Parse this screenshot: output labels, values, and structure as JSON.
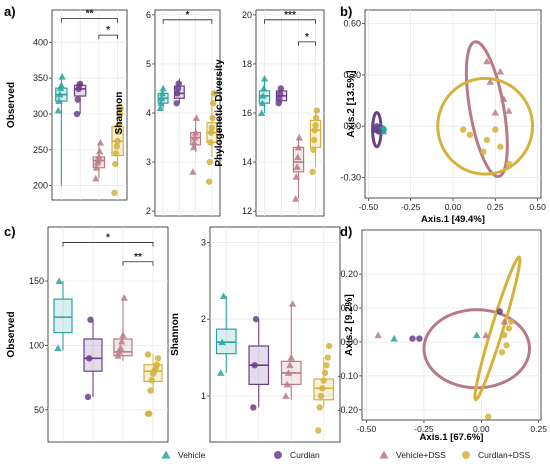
{
  "colors": {
    "vehicle": "#2aa39e",
    "curdlan": "#6b3f8a",
    "vehicle_dss": "#b87a86",
    "curdlan_dss": "#d4b23c",
    "grid": "#e6e6e6"
  },
  "group_order": [
    "Vehicle",
    "Curdlan",
    "Vehicle+DSS",
    "Curdlan+DSS"
  ],
  "legend": {
    "items": [
      {
        "label": "Vehicle",
        "marker": "triangle",
        "color_key": "vehicle"
      },
      {
        "label": "Curdlan",
        "marker": "circle",
        "color_key": "curdlan"
      },
      {
        "label": "Vehicle+DSS",
        "marker": "triangle",
        "color_key": "vehicle_dss"
      },
      {
        "label": "Curdlan+DSS",
        "marker": "circle",
        "color_key": "curdlan_dss"
      }
    ]
  },
  "chart_data": [
    {
      "panel": "a)",
      "type": "box",
      "ylabel": "Observed",
      "ylim": [
        180,
        445
      ],
      "yticks": [
        200,
        250,
        300,
        350,
        400
      ],
      "groups": [
        {
          "group": "Vehicle",
          "box": [
            200,
            318,
            327,
            336,
            352
          ],
          "points": [
            305,
            318,
            327,
            336,
            340,
            352
          ]
        },
        {
          "group": "Curdlan",
          "box": [
            300,
            325,
            335,
            340,
            342
          ],
          "points": [
            300,
            320,
            335,
            340,
            342
          ]
        },
        {
          "group": "Vehicle+DSS",
          "box": [
            210,
            225,
            235,
            240,
            260
          ],
          "points": [
            210,
            225,
            232,
            235,
            240,
            248,
            260
          ]
        },
        {
          "group": "Curdlan+DSS",
          "box": [
            230,
            242,
            262,
            282,
            308
          ],
          "points": [
            190,
            230,
            245,
            255,
            262,
            275,
            285,
            300,
            308
          ]
        }
      ],
      "brackets": [
        {
          "from": 1,
          "to": 4,
          "label": "**",
          "y": 433
        },
        {
          "from": 3,
          "to": 4,
          "label": "*",
          "y": 410
        }
      ]
    },
    {
      "panel": "",
      "type": "box",
      "ylabel": "Shannon",
      "ylim": [
        1.9,
        6.1
      ],
      "yticks": [
        2,
        3,
        4,
        5,
        6
      ],
      "groups": [
        {
          "group": "Vehicle",
          "box": [
            4.1,
            4.2,
            4.3,
            4.4,
            4.5
          ],
          "points": [
            4.1,
            4.2,
            4.3,
            4.4,
            4.5
          ]
        },
        {
          "group": "Curdlan",
          "box": [
            4.2,
            4.3,
            4.4,
            4.55,
            4.7
          ],
          "points": [
            4.2,
            4.4,
            4.5,
            4.6
          ]
        },
        {
          "group": "Vehicle+DSS",
          "box": [
            3.2,
            3.35,
            3.5,
            3.6,
            3.9
          ],
          "points": [
            2.8,
            3.3,
            3.4,
            3.5,
            3.6,
            3.9
          ]
        },
        {
          "group": "Curdlan+DSS",
          "box": [
            3.1,
            3.4,
            3.6,
            3.8,
            4.4
          ],
          "points": [
            2.6,
            3.0,
            3.4,
            3.6,
            3.7,
            3.9,
            4.2,
            4.4
          ]
        }
      ],
      "brackets": [
        {
          "from": 1,
          "to": 4,
          "label": "*",
          "y": 5.9
        }
      ]
    },
    {
      "panel": "",
      "type": "box",
      "ylabel": "Phylogenetic Diversity",
      "ylim": [
        11.8,
        20.2
      ],
      "yticks": [
        12,
        14,
        16,
        18,
        20
      ],
      "groups": [
        {
          "group": "Vehicle",
          "box": [
            16.0,
            16.4,
            16.7,
            16.9,
            17.4
          ],
          "points": [
            16.0,
            16.4,
            16.7,
            17.0,
            17.4
          ]
        },
        {
          "group": "Curdlan",
          "box": [
            16.4,
            16.5,
            16.7,
            16.9,
            17.0
          ],
          "points": [
            16.4,
            16.6,
            16.8,
            17.0
          ]
        },
        {
          "group": "Vehicle+DSS",
          "box": [
            12.5,
            13.6,
            14.0,
            14.6,
            15.0
          ],
          "points": [
            12.5,
            13.4,
            13.8,
            14.2,
            14.6,
            15.0
          ]
        },
        {
          "group": "Curdlan+DSS",
          "box": [
            13.8,
            14.6,
            15.3,
            15.7,
            16.1
          ],
          "points": [
            13.6,
            14.5,
            14.9,
            15.3,
            15.5,
            15.8,
            16.1
          ]
        }
      ],
      "brackets": [
        {
          "from": 1,
          "to": 4,
          "label": "***",
          "y": 19.8
        },
        {
          "from": 3,
          "to": 4,
          "label": "*",
          "y": 18.9
        }
      ]
    },
    {
      "panel": "b)",
      "type": "scatter",
      "xlabel": "Axis.1   [49.4%]",
      "ylabel": "Axis.2 [13.5%]",
      "xlim": [
        -0.52,
        0.52
      ],
      "ylim": [
        -0.42,
        0.68
      ],
      "xticks": [
        -0.5,
        -0.25,
        0.0,
        0.25,
        0.5
      ],
      "yticks": [
        -0.3,
        0.0,
        0.3,
        0.6
      ],
      "points": [
        {
          "group": "Vehicle",
          "x": -0.45,
          "y": -0.01
        },
        {
          "group": "Vehicle",
          "x": -0.43,
          "y": -0.02
        },
        {
          "group": "Vehicle",
          "x": -0.42,
          "y": -0.02
        },
        {
          "group": "Vehicle",
          "x": -0.41,
          "y": -0.03
        },
        {
          "group": "Curdlan",
          "x": -0.46,
          "y": -0.02
        },
        {
          "group": "Curdlan",
          "x": -0.44,
          "y": -0.03
        },
        {
          "group": "Curdlan",
          "x": -0.45,
          "y": 0.0
        },
        {
          "group": "Vehicle+DSS",
          "x": 0.2,
          "y": 0.38
        },
        {
          "group": "Vehicle+DSS",
          "x": 0.28,
          "y": 0.32
        },
        {
          "group": "Vehicle+DSS",
          "x": 0.22,
          "y": 0.26
        },
        {
          "group": "Vehicle+DSS",
          "x": 0.25,
          "y": 0.08
        },
        {
          "group": "Vehicle+DSS",
          "x": 0.3,
          "y": 0.16
        },
        {
          "group": "Vehicle+DSS",
          "x": 0.33,
          "y": 0.09
        },
        {
          "group": "Curdlan+DSS",
          "x": 0.06,
          "y": -0.02
        },
        {
          "group": "Curdlan+DSS",
          "x": 0.1,
          "y": -0.05
        },
        {
          "group": "Curdlan+DSS",
          "x": 0.2,
          "y": -0.08
        },
        {
          "group": "Curdlan+DSS",
          "x": 0.25,
          "y": -0.02
        },
        {
          "group": "Curdlan+DSS",
          "x": 0.28,
          "y": -0.12
        },
        {
          "group": "Curdlan+DSS",
          "x": 0.33,
          "y": -0.22
        },
        {
          "group": "Curdlan+DSS",
          "x": 0.18,
          "y": -0.15
        }
      ],
      "ellipses": [
        {
          "group": "Vehicle",
          "cx": -0.43,
          "cy": -0.02,
          "rx": 0.03,
          "ry": 0.02,
          "angle": 0
        },
        {
          "group": "Curdlan",
          "cx": -0.45,
          "cy": -0.02,
          "rx": 0.025,
          "ry": 0.1,
          "angle": 0
        },
        {
          "group": "Vehicle+DSS",
          "cx": 0.2,
          "cy": 0.1,
          "rx": 0.1,
          "ry": 0.4,
          "angle": -10
        },
        {
          "group": "Curdlan+DSS",
          "cx": 0.19,
          "cy": 0.0,
          "rx": 0.28,
          "ry": 0.28,
          "angle": 0
        }
      ]
    },
    {
      "panel": "c)",
      "type": "box",
      "ylabel": "Observed",
      "ylim": [
        25,
        192
      ],
      "yticks": [
        50,
        100,
        150
      ],
      "groups": [
        {
          "group": "Vehicle",
          "box": [
            96,
            110,
            122,
            136,
            150
          ],
          "points": [
            98,
            150
          ]
        },
        {
          "group": "Curdlan",
          "box": [
            60,
            80,
            90,
            105,
            120
          ],
          "points": [
            60,
            90,
            120
          ]
        },
        {
          "group": "Vehicle+DSS",
          "box": [
            88,
            92,
            95,
            105,
            137
          ],
          "points": [
            92,
            95,
            98,
            103,
            108,
            137
          ]
        },
        {
          "group": "Curdlan+DSS",
          "box": [
            63,
            72,
            80,
            85,
            93
          ],
          "points": [
            47,
            47,
            65,
            73,
            78,
            80,
            82,
            85,
            90,
            93
          ]
        }
      ],
      "brackets": [
        {
          "from": 1,
          "to": 4,
          "label": "*",
          "y": 180
        },
        {
          "from": 3,
          "to": 4,
          "label": "**",
          "y": 165
        }
      ]
    },
    {
      "panel": "",
      "type": "box",
      "ylabel": "Shannon",
      "ylim": [
        0.4,
        3.2
      ],
      "yticks": [
        1,
        2,
        3
      ],
      "groups": [
        {
          "group": "Vehicle",
          "box": [
            1.3,
            1.55,
            1.7,
            1.87,
            2.3
          ],
          "points": [
            1.3,
            1.7,
            2.3
          ]
        },
        {
          "group": "Curdlan",
          "box": [
            0.85,
            1.15,
            1.4,
            1.65,
            2.0
          ],
          "points": [
            0.85,
            1.4,
            2.0
          ]
        },
        {
          "group": "Vehicle+DSS",
          "box": [
            0.95,
            1.15,
            1.3,
            1.45,
            2.2
          ],
          "points": [
            1.0,
            1.15,
            1.3,
            1.4,
            1.5,
            2.2
          ]
        },
        {
          "group": "Curdlan+DSS",
          "box": [
            0.85,
            0.95,
            1.1,
            1.22,
            1.5
          ],
          "points": [
            0.55,
            0.85,
            1.0,
            1.1,
            1.2,
            1.3,
            1.4,
            1.5,
            1.65
          ]
        }
      ],
      "brackets": []
    },
    {
      "panel": "d)",
      "type": "scatter",
      "xlabel": "Axis.1   [67.6%]",
      "ylabel": "Axis.2 [9.2%]",
      "xlim": [
        -0.52,
        0.26
      ],
      "ylim": [
        -0.23,
        0.33
      ],
      "xticks": [
        -0.5,
        -0.25,
        0.0,
        0.25
      ],
      "yticks": [
        -0.2,
        -0.1,
        0.0,
        0.1,
        0.2
      ],
      "points": [
        {
          "group": "Vehicle",
          "x": -0.38,
          "y": 0.01
        },
        {
          "group": "Vehicle",
          "x": -0.02,
          "y": 0.02
        },
        {
          "group": "Curdlan",
          "x": -0.3,
          "y": 0.01
        },
        {
          "group": "Curdlan",
          "x": -0.27,
          "y": 0.01
        },
        {
          "group": "Curdlan",
          "x": 0.08,
          "y": 0.09
        },
        {
          "group": "Vehicle+DSS",
          "x": -0.45,
          "y": 0.02
        },
        {
          "group": "Vehicle+DSS",
          "x": 0.02,
          "y": 0.02
        },
        {
          "group": "Vehicle+DSS",
          "x": 0.1,
          "y": 0.06
        },
        {
          "group": "Curdlan+DSS",
          "x": 0.1,
          "y": 0.02
        },
        {
          "group": "Curdlan+DSS",
          "x": 0.11,
          "y": -0.01
        },
        {
          "group": "Curdlan+DSS",
          "x": 0.12,
          "y": 0.04
        },
        {
          "group": "Curdlan+DSS",
          "x": 0.09,
          "y": -0.03
        },
        {
          "group": "Curdlan+DSS",
          "x": 0.13,
          "y": 0.06
        },
        {
          "group": "Curdlan+DSS",
          "x": 0.03,
          "y": -0.22
        }
      ],
      "ellipses": [
        {
          "group": "Vehicle+DSS",
          "cx": -0.02,
          "cy": -0.02,
          "rx": 0.23,
          "ry": 0.115,
          "angle": 0
        },
        {
          "group": "Curdlan+DSS",
          "cx": 0.07,
          "cy": 0.04,
          "rx": 0.025,
          "ry": 0.22,
          "angle": 17
        }
      ]
    }
  ]
}
